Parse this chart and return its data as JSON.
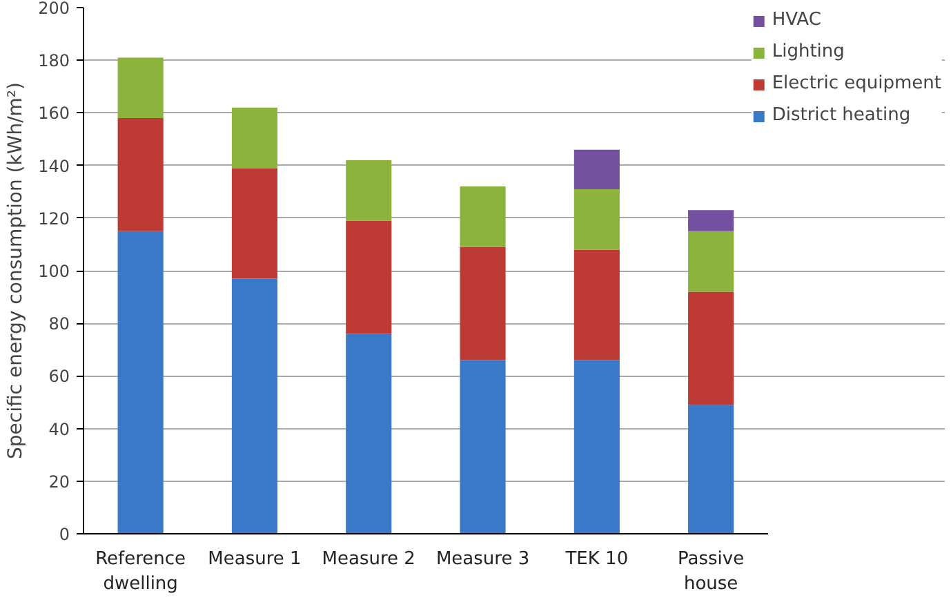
{
  "chart_data": {
    "type": "bar",
    "stacked": true,
    "ylabel": "Specific energy consumption (kWh/m²)",
    "categories": [
      "Reference dwelling",
      "Measure 1",
      "Measure 2",
      "Measure 3",
      "TEK 10",
      "Passive house"
    ],
    "series": [
      {
        "name": "District heating",
        "color": "#3a78c8",
        "values": [
          115,
          97,
          76,
          66,
          66,
          49
        ]
      },
      {
        "name": "Electric equipment",
        "color": "#be3a34",
        "values": [
          43,
          42,
          43,
          43,
          42,
          43
        ]
      },
      {
        "name": "Lighting",
        "color": "#8cb43c",
        "values": [
          23,
          23,
          23,
          23,
          23,
          23
        ]
      },
      {
        "name": "HVAC",
        "color": "#7351a0",
        "values": [
          0,
          0,
          0,
          0,
          15,
          8
        ]
      }
    ],
    "ylim": [
      0,
      200
    ],
    "yticks": [
      0,
      20,
      40,
      60,
      80,
      100,
      120,
      140,
      160,
      180,
      200
    ],
    "grid": "y",
    "legend": "top right"
  }
}
